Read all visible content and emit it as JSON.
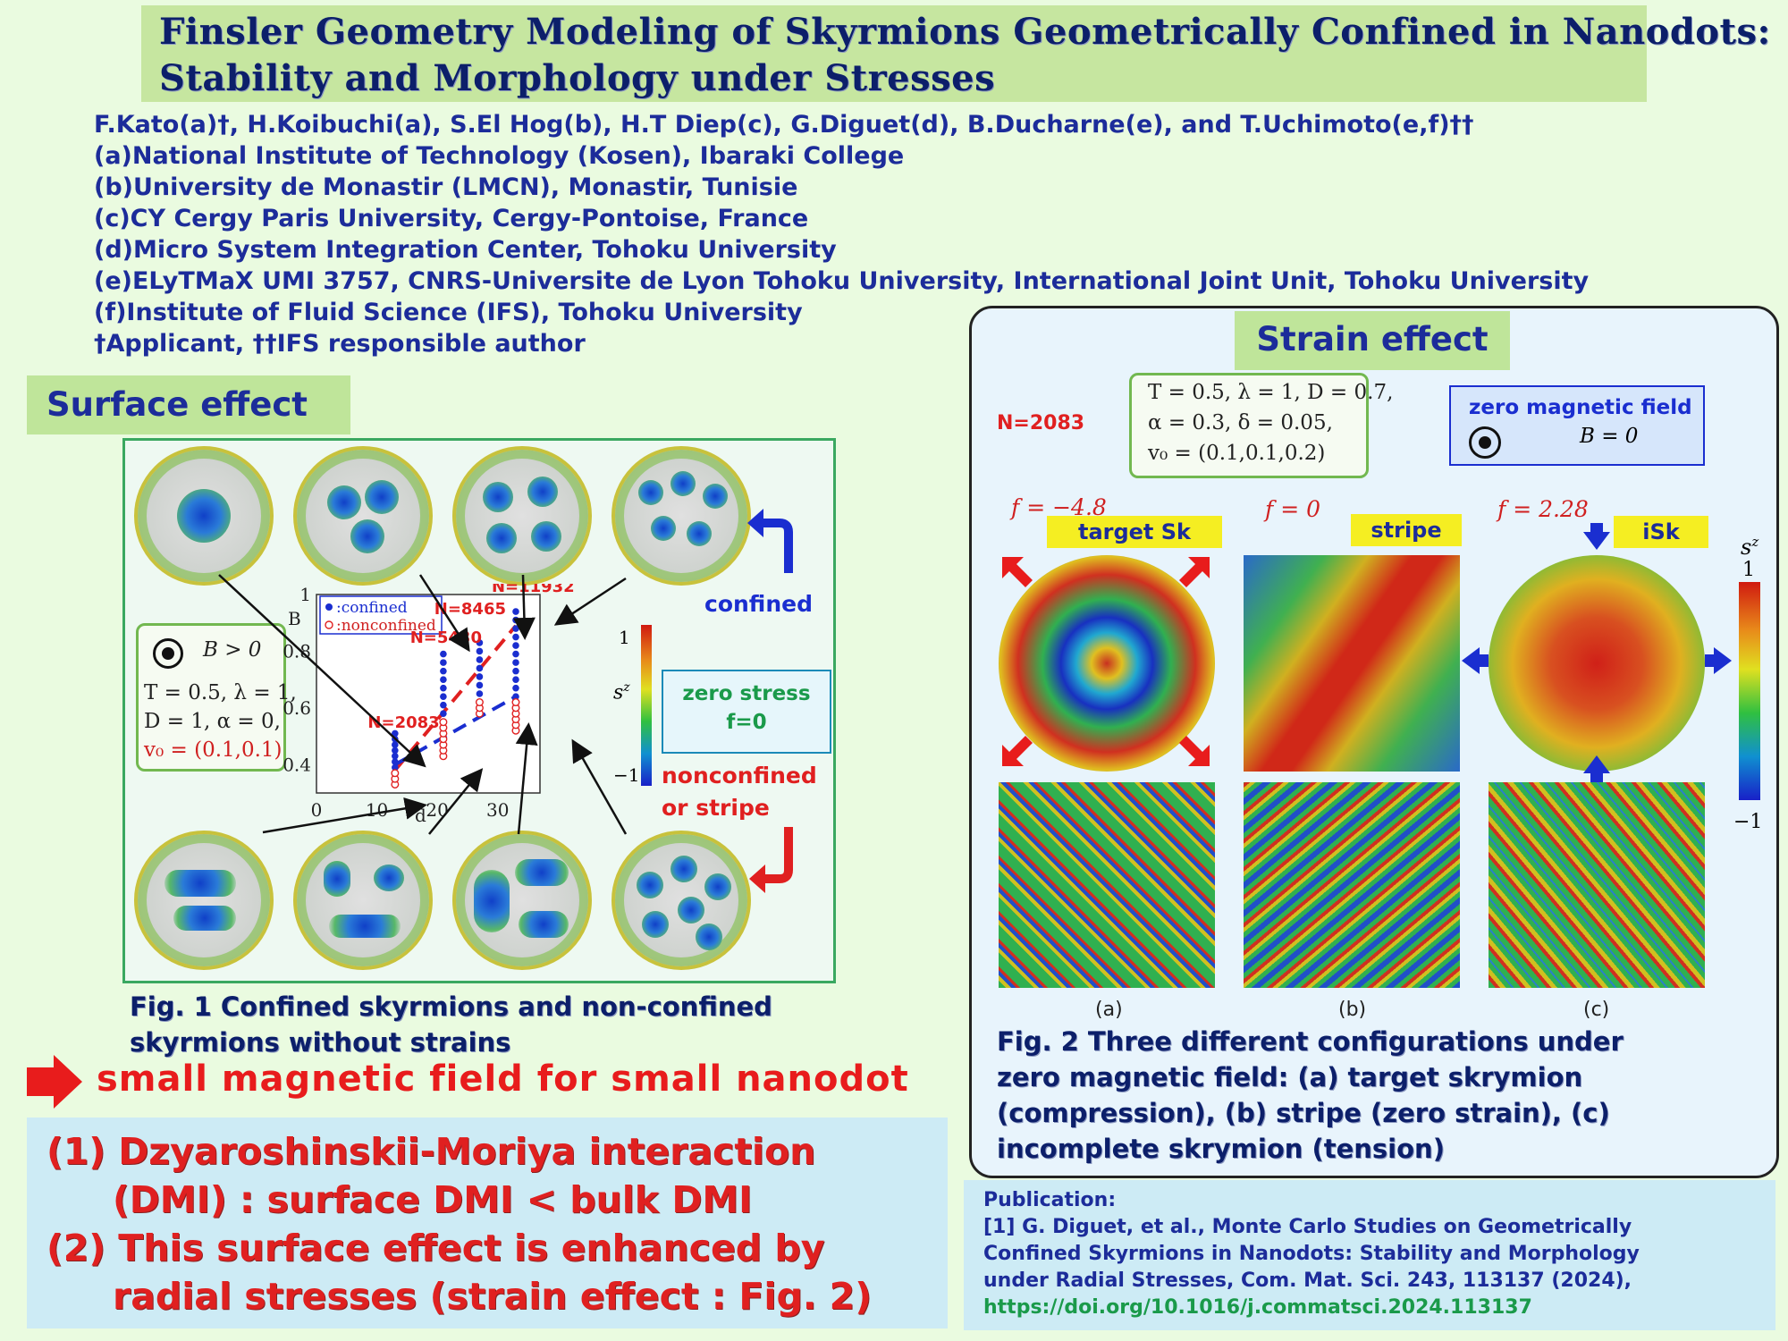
{
  "title": {
    "line1": "Finsler Geometry Modeling of Skyrmions Geometrically Confined in Nanodots:",
    "line2": "Stability and Morphology under Stresses"
  },
  "authors": [
    "F.Kato(a)†, H.Koibuchi(a), S.El Hog(b), H.T Diep(c), G.Diguet(d), B.Ducharne(e),  and T.Uchimoto(e,f)††",
    "(a)National Institute of Technology (Kosen), Ibaraki College",
    "(b)University de Monastir (LMCN), Monastir, Tunisie",
    "(c)CY Cergy Paris University, Cergy-Pontoise, France",
    "(d)Micro System Integration Center, Tohoku University",
    "(e)ELyTMaX UMI 3757, CNRS-Universite de Lyon Tohoku University, International Joint Unit, Tohoku University",
    "(f)Institute of Fluid Science (IFS), Tohoku University",
    "†Applicant, ††IFS responsible author"
  ],
  "surface": {
    "label": "Surface effect",
    "params": {
      "field": "B > 0",
      "line1": "T = 0.5, λ = 1,",
      "line2": "D = 1, α = 0,",
      "line3": "v₀ = (0.1,0.1)"
    },
    "confined_label": "confined",
    "nonconfined_label": "nonconfined",
    "or_stripe": "or stripe",
    "zero_stress_1": "zero stress",
    "zero_stress_2": "f=0",
    "caption1": "Fig. 1 Confined skyrmions and non-confined",
    "caption2": "skyrmions without strains",
    "arrow_text": "small magnetic field for small nanodot",
    "colorbar": {
      "label": "s",
      "sup": "z",
      "max": "1",
      "min": "−1"
    }
  },
  "chart_data": {
    "type": "scatter",
    "xlabel": "d",
    "ylabel": "B",
    "xlim": [
      0,
      37
    ],
    "ylim": [
      0.3,
      1.0
    ],
    "x_ticks": [
      "0",
      "10",
      "20",
      "30"
    ],
    "y_ticks": [
      "0.4",
      "0.6",
      "0.8",
      "1"
    ],
    "legend": [
      "confined",
      "nonconfined"
    ],
    "legend_placement": "top-left",
    "annotations": [
      "N=2083",
      "N=5430",
      "N=8465",
      "N=11932"
    ],
    "series": [
      {
        "name": "confined",
        "color": "#1a2ed0",
        "points": [
          [
            13,
            0.37
          ],
          [
            13,
            0.39
          ],
          [
            13,
            0.41
          ],
          [
            13,
            0.43
          ],
          [
            13,
            0.45
          ],
          [
            13,
            0.47
          ],
          [
            13,
            0.49
          ],
          [
            13,
            0.51
          ],
          [
            21,
            0.58
          ],
          [
            21,
            0.61
          ],
          [
            21,
            0.64
          ],
          [
            21,
            0.67
          ],
          [
            21,
            0.7
          ],
          [
            21,
            0.73
          ],
          [
            21,
            0.76
          ],
          [
            21,
            0.79
          ],
          [
            27,
            0.62
          ],
          [
            27,
            0.65
          ],
          [
            27,
            0.68
          ],
          [
            27,
            0.71
          ],
          [
            27,
            0.74
          ],
          [
            27,
            0.77
          ],
          [
            27,
            0.8
          ],
          [
            27,
            0.83
          ],
          [
            33,
            0.64
          ],
          [
            33,
            0.67
          ],
          [
            33,
            0.7
          ],
          [
            33,
            0.73
          ],
          [
            33,
            0.76
          ],
          [
            33,
            0.79
          ],
          [
            33,
            0.82
          ],
          [
            33,
            0.85
          ],
          [
            33,
            0.88
          ],
          [
            33,
            0.91
          ],
          [
            33,
            0.94
          ]
        ]
      },
      {
        "name": "nonconfined",
        "color": "#e02020",
        "points": [
          [
            13,
            0.33
          ],
          [
            13,
            0.35
          ],
          [
            13,
            0.37
          ],
          [
            21,
            0.43
          ],
          [
            21,
            0.45
          ],
          [
            21,
            0.47
          ],
          [
            21,
            0.49
          ],
          [
            21,
            0.51
          ],
          [
            21,
            0.53
          ],
          [
            21,
            0.55
          ],
          [
            27,
            0.58
          ],
          [
            27,
            0.6
          ],
          [
            27,
            0.62
          ],
          [
            33,
            0.52
          ],
          [
            33,
            0.54
          ],
          [
            33,
            0.56
          ],
          [
            33,
            0.58
          ],
          [
            33,
            0.6
          ],
          [
            33,
            0.62
          ]
        ]
      }
    ],
    "fit_lines": [
      {
        "color": "#e02020",
        "from": [
          13,
          0.38
        ],
        "to": [
          33,
          0.89
        ]
      },
      {
        "color": "#1a2ed0",
        "from": [
          13,
          0.4
        ],
        "to": [
          33,
          0.64
        ]
      }
    ]
  },
  "strain": {
    "label": "Strain effect",
    "n_label": "N=2083",
    "params": {
      "line1": "T = 0.5, λ = 1, D = 0.7,",
      "line2": "α = 0.3, δ = 0.05,",
      "line3": "v₀ = (0.1,0.1,0.2)"
    },
    "zero_field": {
      "title": "zero magnetic field",
      "eq": "B = 0"
    },
    "panels": [
      {
        "f": "f = −4.8",
        "tag": "target Sk",
        "letter": "(a)"
      },
      {
        "f": "f = 0",
        "tag": "stripe",
        "letter": "(b)"
      },
      {
        "f": "f = 2.28",
        "tag": "iSk",
        "letter": "(c)"
      }
    ],
    "colorbar": {
      "label": "s",
      "sup": "z",
      "max": "1",
      "min": "−1"
    },
    "caption": [
      "Fig. 2 Three different configurations under",
      "zero magnetic field: (a)  target skrymion",
      "(compression), (b) stripe (zero strain), (c)",
      "incomplete skrymion (tension)"
    ]
  },
  "conclusions": [
    "(1) Dzyaroshinskii-Moriya interaction",
    "(DMI) : surface DMI < bulk DMI",
    "(2) This surface effect is enhanced by",
    "radial stresses (strain effect : Fig. 2)"
  ],
  "publication": {
    "heading": "Publication:",
    "lines": [
      "[1] G. Diguet, et al., Monte Carlo Studies on Geometrically",
      "Confined Skyrmions in Nanodots: Stability and Morphology",
      "under Radial Stresses, Com. Mat. Sci. 243, 113137 (2024),"
    ],
    "link": "https://doi.org/10.1016/j.commatsci.2024.113137"
  }
}
